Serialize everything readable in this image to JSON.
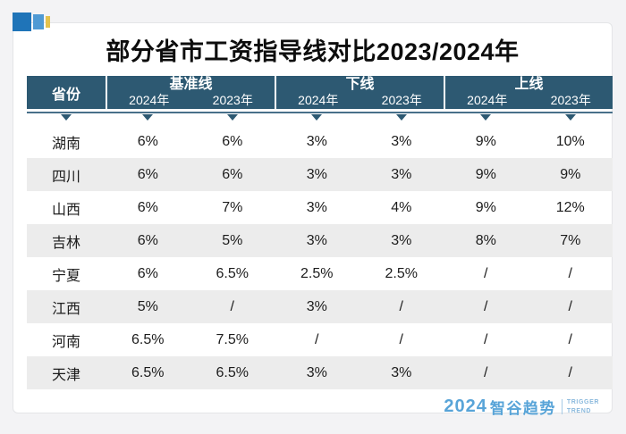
{
  "title": "部分省市工资指导线对比2023/2024年",
  "table": {
    "province_header": "省份",
    "groups": [
      {
        "label": "基准线",
        "years": [
          "2024年",
          "2023年"
        ]
      },
      {
        "label": "下线",
        "years": [
          "2024年",
          "2023年"
        ]
      },
      {
        "label": "上线",
        "years": [
          "2024年",
          "2023年"
        ]
      }
    ],
    "rows": [
      {
        "province": "湖南",
        "values": [
          "6%",
          "6%",
          "3%",
          "3%",
          "9%",
          "10%"
        ]
      },
      {
        "province": "四川",
        "values": [
          "6%",
          "6%",
          "3%",
          "3%",
          "9%",
          "9%"
        ]
      },
      {
        "province": "山西",
        "values": [
          "6%",
          "7%",
          "3%",
          "4%",
          "9%",
          "12%"
        ]
      },
      {
        "province": "吉林",
        "values": [
          "6%",
          "5%",
          "3%",
          "3%",
          "8%",
          "7%"
        ]
      },
      {
        "province": "宁夏",
        "values": [
          "6%",
          "6.5%",
          "2.5%",
          "2.5%",
          "/",
          "/"
        ]
      },
      {
        "province": "江西",
        "values": [
          "5%",
          "/",
          "3%",
          "/",
          "/",
          "/"
        ]
      },
      {
        "province": "河南",
        "values": [
          "6.5%",
          "7.5%",
          "/",
          "/",
          "/",
          "/"
        ]
      },
      {
        "province": "天津",
        "values": [
          "6.5%",
          "6.5%",
          "3%",
          "3%",
          "/",
          "/"
        ]
      }
    ]
  },
  "footer": {
    "year": "2024",
    "brand": "智谷趋势",
    "tagline_top": "TRIGGER",
    "tagline_bottom": "TREND"
  },
  "colors": {
    "header_bg": "#2d5972",
    "row_stripe": "#ececec",
    "logo_blue": "#58a4d8",
    "decor_dark_blue": "#1f74b8",
    "decor_light_blue": "#4f9ad4",
    "decor_yellow": "#e3c24d"
  },
  "chart_data": {
    "type": "table",
    "title": "部分省市工资指导线对比2023/2024年",
    "columns": [
      "省份",
      "基准线 2024年",
      "基准线 2023年",
      "下线 2024年",
      "下线 2023年",
      "上线 2024年",
      "上线 2023年"
    ],
    "rows": [
      [
        "湖南",
        "6%",
        "6%",
        "3%",
        "3%",
        "9%",
        "10%"
      ],
      [
        "四川",
        "6%",
        "6%",
        "3%",
        "3%",
        "9%",
        "9%"
      ],
      [
        "山西",
        "6%",
        "7%",
        "3%",
        "4%",
        "9%",
        "12%"
      ],
      [
        "吉林",
        "6%",
        "5%",
        "3%",
        "3%",
        "8%",
        "7%"
      ],
      [
        "宁夏",
        "6%",
        "6.5%",
        "2.5%",
        "2.5%",
        "/",
        "/"
      ],
      [
        "江西",
        "5%",
        "/",
        "3%",
        "/",
        "/",
        "/"
      ],
      [
        "河南",
        "6.5%",
        "7.5%",
        "/",
        "/",
        "/",
        "/"
      ],
      [
        "天津",
        "6.5%",
        "6.5%",
        "3%",
        "3%",
        "/",
        "/"
      ]
    ]
  }
}
